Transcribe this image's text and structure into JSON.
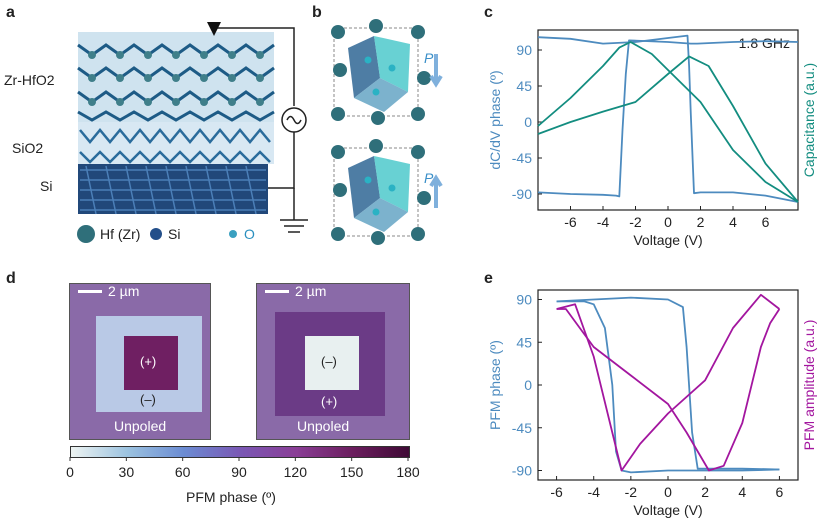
{
  "panels": {
    "a": {
      "label": "a",
      "layers": [
        "Zr-HfO2",
        "SiO2",
        "Si"
      ],
      "legend": [
        "Hf (Zr)",
        "Si",
        "O"
      ]
    },
    "b": {
      "label": "b",
      "polarization": "P"
    },
    "c": {
      "label": "c"
    },
    "d": {
      "label": "d",
      "scale_bar": "2 µm",
      "left_inner": "(+)",
      "left_outer": "(–)",
      "left_bottom": "Unpoled",
      "right_inner": "(–)",
      "right_outer": "(+)",
      "right_bottom": "Unpoled",
      "colorbar_label": "PFM phase (º)",
      "colorbar_ticks": [
        "0",
        "30",
        "60",
        "90",
        "120",
        "150",
        "180"
      ],
      "colorbar_stops": [
        "#eef4f2",
        "#9cc3e0",
        "#6b8cd3",
        "#7a58b5",
        "#8a3e96",
        "#6b1e5e",
        "#3f0a35"
      ]
    },
    "e": {
      "label": "e"
    }
  },
  "colors": {
    "blue": "#4d8bbf",
    "teal": "#138d80",
    "purple": "#a3169f",
    "frame": "#222222"
  },
  "chart_data": [
    {
      "panel": "c",
      "type": "line",
      "annotation": "1.8 GHz",
      "xlabel": "Voltage (V)",
      "ylabel_left": "dC/dV phase (º)",
      "ylabel_right": "Capacitance (a.u.)",
      "xlim": [
        -8,
        8
      ],
      "ylim": [
        -110,
        115
      ],
      "xticks": [
        -6,
        -4,
        -2,
        0,
        2,
        4,
        6
      ],
      "yticks": [
        90,
        45,
        0,
        -45,
        -90
      ],
      "series": [
        {
          "name": "dC/dV phase",
          "axis": "left",
          "color": "blue",
          "x": [
            -8,
            -6,
            -4,
            -3.2,
            -3.0,
            -2.8,
            -2.6,
            -2.4,
            0,
            1.4,
            1.8,
            4,
            6,
            8
          ],
          "y": [
            -88,
            -90,
            -91,
            -92,
            -93,
            -10,
            60,
            102,
            100,
            98,
            98,
            100,
            101,
            100
          ]
        },
        {
          "name": "dC/dV phase",
          "axis": "left",
          "color": "blue",
          "x": [
            8,
            6,
            4,
            2,
            1.6,
            1.4,
            1.3,
            1.2,
            0,
            -2,
            -4,
            -6,
            -8
          ],
          "y": [
            -100,
            -92,
            -88,
            -88,
            -89,
            10,
            70,
            108,
            105,
            100,
            98,
            104,
            106
          ]
        },
        {
          "name": "Capacitance",
          "axis": "right",
          "color": "teal",
          "x": [
            -8,
            -6,
            -4,
            -3,
            -2.3,
            -1,
            0,
            2,
            4,
            6,
            8
          ],
          "y": [
            -5,
            30,
            70,
            93,
            100,
            85,
            65,
            25,
            -35,
            -75,
            -100
          ]
        },
        {
          "name": "Capacitance",
          "axis": "right",
          "color": "teal",
          "x": [
            8,
            6,
            4,
            2.5,
            1.3,
            0,
            -2,
            -4,
            -6,
            -8
          ],
          "y": [
            -100,
            -52,
            20,
            70,
            82,
            60,
            25,
            13,
            0,
            -15
          ]
        }
      ]
    },
    {
      "panel": "e",
      "type": "line",
      "xlabel": "Voltage (V)",
      "ylabel_left": "PFM phase (º)",
      "ylabel_right": "PFM amplitude (a.u.)",
      "xlim": [
        -7,
        7
      ],
      "ylim": [
        -100,
        100
      ],
      "xticks": [
        -6,
        -4,
        -2,
        0,
        2,
        4,
        6
      ],
      "yticks": [
        90,
        45,
        0,
        -45,
        -90
      ],
      "series": [
        {
          "name": "PFM phase",
          "axis": "left",
          "color": "blue",
          "x": [
            -6,
            -4.5,
            -4,
            -3.4,
            -3.0,
            -2.8,
            -2.5,
            -2,
            0,
            2,
            4,
            6
          ],
          "y": [
            88,
            88,
            85,
            60,
            0,
            -70,
            -90,
            -92,
            -90,
            -90,
            -90,
            -89
          ]
        },
        {
          "name": "PFM phase",
          "axis": "left",
          "color": "blue",
          "x": [
            6,
            4,
            2,
            1.6,
            1.3,
            1.0,
            0.8,
            0,
            -2,
            -4,
            -6
          ],
          "y": [
            -89,
            -88,
            -88,
            -88,
            -50,
            40,
            82,
            90,
            92,
            90,
            88
          ]
        },
        {
          "name": "PFM amplitude",
          "axis": "right",
          "color": "purple",
          "x": [
            -6,
            -5,
            -4,
            -3,
            -2.5,
            -1.5,
            0,
            2,
            3.5,
            5,
            6
          ],
          "y": [
            80,
            85,
            30,
            -50,
            -90,
            -62,
            -30,
            5,
            60,
            95,
            80
          ]
        },
        {
          "name": "PFM amplitude",
          "axis": "right",
          "color": "purple",
          "x": [
            6,
            5.5,
            5,
            4,
            3,
            2.2,
            1,
            0,
            -2,
            -4,
            -5.5,
            -6
          ],
          "y": [
            80,
            65,
            40,
            -40,
            -85,
            -90,
            -50,
            -20,
            10,
            40,
            80,
            80
          ]
        }
      ]
    }
  ]
}
